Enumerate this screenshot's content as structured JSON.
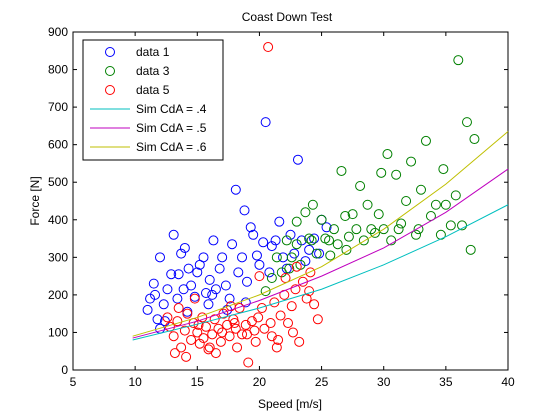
{
  "chart_data": {
    "type": "scatter",
    "title": "Coast Down Test",
    "xlabel": "Speed [m/s]",
    "ylabel": "Force [N]",
    "xlim": [
      5,
      40
    ],
    "ylim": [
      0,
      900
    ],
    "xticks": [
      5,
      10,
      15,
      20,
      25,
      30,
      35,
      40
    ],
    "yticks": [
      0,
      100,
      200,
      300,
      400,
      500,
      600,
      700,
      800,
      900
    ],
    "grid": false,
    "legend_position": "top-left",
    "series": [
      {
        "name": "data 1",
        "kind": "scatter",
        "color": "#0000ff",
        "points": [
          [
            11.0,
            160
          ],
          [
            11.2,
            190
          ],
          [
            11.5,
            230
          ],
          [
            11.8,
            135
          ],
          [
            12.0,
            110
          ],
          [
            12.3,
            175
          ],
          [
            12.6,
            215
          ],
          [
            12.9,
            255
          ],
          [
            13.1,
            360
          ],
          [
            13.4,
            190
          ],
          [
            13.7,
            310
          ],
          [
            14.0,
            325
          ],
          [
            14.2,
            155
          ],
          [
            14.5,
            225
          ],
          [
            14.8,
            195
          ],
          [
            15.0,
            260
          ],
          [
            15.2,
            280
          ],
          [
            15.5,
            300
          ],
          [
            15.7,
            205
          ],
          [
            16.0,
            240
          ],
          [
            16.3,
            345
          ],
          [
            16.5,
            215
          ],
          [
            16.8,
            270
          ],
          [
            17.0,
            300
          ],
          [
            17.3,
            225
          ],
          [
            17.6,
            190
          ],
          [
            17.8,
            335
          ],
          [
            18.1,
            480
          ],
          [
            18.3,
            260
          ],
          [
            18.6,
            300
          ],
          [
            18.8,
            425
          ],
          [
            19.0,
            235
          ],
          [
            19.3,
            380
          ],
          [
            19.5,
            360
          ],
          [
            19.8,
            305
          ],
          [
            20.0,
            280
          ],
          [
            20.3,
            340
          ],
          [
            20.5,
            660
          ],
          [
            20.8,
            260
          ],
          [
            21.0,
            330
          ],
          [
            21.3,
            345
          ],
          [
            21.6,
            395
          ],
          [
            21.9,
            300
          ],
          [
            22.2,
            270
          ],
          [
            22.5,
            360
          ],
          [
            22.8,
            310
          ],
          [
            23.1,
            560
          ],
          [
            23.4,
            345
          ],
          [
            23.7,
            290
          ],
          [
            24.0,
            320
          ],
          [
            24.4,
            350
          ],
          [
            24.8,
            310
          ],
          [
            25.0,
            400
          ],
          [
            25.4,
            380
          ],
          [
            12.0,
            300
          ],
          [
            13.5,
            255
          ],
          [
            14.3,
            270
          ],
          [
            16.2,
            200
          ],
          [
            17.4,
            160
          ],
          [
            18.9,
            180
          ],
          [
            12.4,
            130
          ],
          [
            11.6,
            200
          ],
          [
            13.9,
            215
          ],
          [
            15.9,
            175
          ]
        ]
      },
      {
        "name": "data 3",
        "kind": "scatter",
        "color": "#008000",
        "points": [
          [
            20.5,
            210
          ],
          [
            21.0,
            245
          ],
          [
            21.4,
            300
          ],
          [
            21.8,
            260
          ],
          [
            22.2,
            345
          ],
          [
            22.6,
            300
          ],
          [
            23.0,
            395
          ],
          [
            23.3,
            280
          ],
          [
            23.7,
            420
          ],
          [
            24.0,
            350
          ],
          [
            24.3,
            440
          ],
          [
            24.6,
            310
          ],
          [
            25.0,
            400
          ],
          [
            25.3,
            350
          ],
          [
            25.7,
            305
          ],
          [
            26.0,
            375
          ],
          [
            26.3,
            335
          ],
          [
            26.6,
            530
          ],
          [
            26.9,
            410
          ],
          [
            27.2,
            355
          ],
          [
            27.5,
            415
          ],
          [
            27.8,
            375
          ],
          [
            28.1,
            490
          ],
          [
            28.4,
            345
          ],
          [
            28.7,
            440
          ],
          [
            29.0,
            375
          ],
          [
            29.3,
            365
          ],
          [
            29.6,
            415
          ],
          [
            30.0,
            375
          ],
          [
            30.3,
            575
          ],
          [
            30.6,
            345
          ],
          [
            31.0,
            520
          ],
          [
            31.4,
            390
          ],
          [
            31.8,
            450
          ],
          [
            32.2,
            555
          ],
          [
            32.6,
            360
          ],
          [
            33.0,
            480
          ],
          [
            33.4,
            610
          ],
          [
            33.8,
            410
          ],
          [
            34.2,
            440
          ],
          [
            34.6,
            360
          ],
          [
            35.0,
            440
          ],
          [
            35.4,
            385
          ],
          [
            35.8,
            465
          ],
          [
            36.0,
            825
          ],
          [
            36.3,
            385
          ],
          [
            36.7,
            660
          ],
          [
            37.0,
            320
          ],
          [
            37.3,
            615
          ],
          [
            34.8,
            535
          ],
          [
            32.8,
            375
          ],
          [
            31.2,
            375
          ],
          [
            29.8,
            525
          ],
          [
            27.0,
            320
          ],
          [
            25.6,
            345
          ],
          [
            24.2,
            345
          ],
          [
            23.0,
            335
          ],
          [
            22.4,
            270
          ]
        ]
      },
      {
        "name": "data 5",
        "kind": "scatter",
        "color": "#ff0000",
        "points": [
          [
            12.8,
            115
          ],
          [
            13.1,
            90
          ],
          [
            13.4,
            130
          ],
          [
            13.7,
            60
          ],
          [
            14.0,
            105
          ],
          [
            14.2,
            150
          ],
          [
            14.5,
            80
          ],
          [
            14.7,
            125
          ],
          [
            15.0,
            100
          ],
          [
            15.2,
            70
          ],
          [
            15.4,
            140
          ],
          [
            15.7,
            115
          ],
          [
            15.9,
            55
          ],
          [
            16.2,
            95
          ],
          [
            16.4,
            135
          ],
          [
            16.7,
            110
          ],
          [
            16.9,
            75
          ],
          [
            17.1,
            150
          ],
          [
            17.4,
            120
          ],
          [
            17.6,
            90
          ],
          [
            17.9,
            135
          ],
          [
            18.1,
            110
          ],
          [
            18.4,
            165
          ],
          [
            18.6,
            95
          ],
          [
            18.9,
            120
          ],
          [
            19.1,
            20
          ],
          [
            19.4,
            130
          ],
          [
            19.6,
            105
          ],
          [
            19.9,
            140
          ],
          [
            20.2,
            165
          ],
          [
            20.4,
            110
          ],
          [
            20.7,
            860
          ],
          [
            20.9,
            125
          ],
          [
            21.2,
            180
          ],
          [
            21.5,
            80
          ],
          [
            21.7,
            145
          ],
          [
            22.0,
            200
          ],
          [
            22.3,
            125
          ],
          [
            22.6,
            170
          ],
          [
            22.9,
            215
          ],
          [
            23.2,
            75
          ],
          [
            23.5,
            235
          ],
          [
            23.8,
            190
          ],
          [
            24.1,
            260
          ],
          [
            24.4,
            175
          ],
          [
            24.7,
            135
          ],
          [
            13.2,
            45
          ],
          [
            14.1,
            35
          ],
          [
            15.1,
            120
          ],
          [
            16.0,
            60
          ],
          [
            17.0,
            100
          ],
          [
            18.0,
            125
          ],
          [
            19.0,
            95
          ],
          [
            20.0,
            250
          ],
          [
            21.0,
            90
          ],
          [
            22.1,
            245
          ],
          [
            23.0,
            275
          ],
          [
            24.0,
            210
          ],
          [
            13.5,
            165
          ],
          [
            14.8,
            190
          ],
          [
            16.5,
            45
          ],
          [
            18.2,
            60
          ],
          [
            19.7,
            75
          ],
          [
            21.4,
            60
          ],
          [
            22.7,
            100
          ],
          [
            12.6,
            140
          ],
          [
            15.5,
            85
          ],
          [
            17.7,
            170
          ]
        ]
      },
      {
        "name": "Sim CdA = .4",
        "kind": "line",
        "color": "#00bfbf",
        "x": [
          9.8,
          15,
          20,
          25,
          30,
          35,
          40
        ],
        "y": [
          80,
          122,
          165,
          215,
          280,
          355,
          440
        ]
      },
      {
        "name": "Sim CdA = .5",
        "kind": "line",
        "color": "#bf00bf",
        "x": [
          9.8,
          15,
          20,
          25,
          30,
          35,
          40
        ],
        "y": [
          85,
          130,
          185,
          250,
          325,
          420,
          535
        ]
      },
      {
        "name": "Sim CdA = .6",
        "kind": "line",
        "color": "#bfbf00",
        "x": [
          9.8,
          15,
          20,
          25,
          30,
          35,
          40
        ],
        "y": [
          90,
          140,
          200,
          275,
          375,
          495,
          635
        ]
      }
    ]
  }
}
